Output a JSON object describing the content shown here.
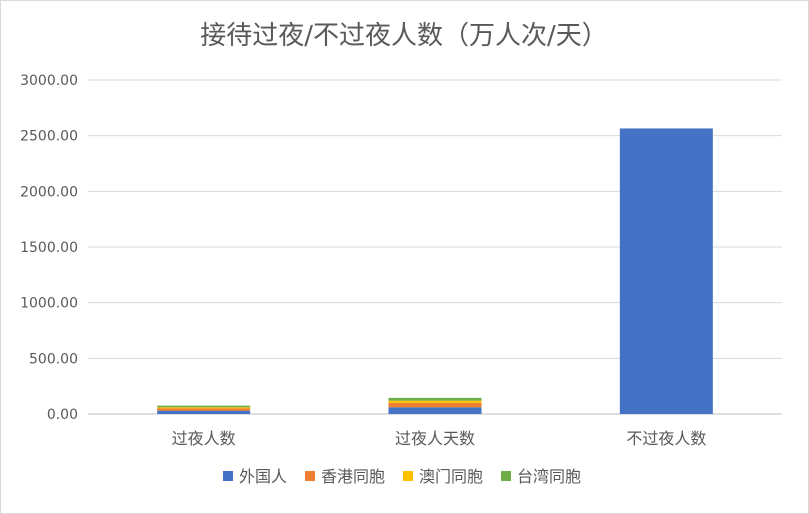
{
  "chart_data": {
    "type": "bar",
    "stacked": true,
    "title": "接待过夜/不过夜人数（万人次/天）",
    "categories": [
      "过夜人数",
      "过夜人天数",
      "不过夜人数"
    ],
    "series": [
      {
        "name": "外国人",
        "color": "#4472C4",
        "values": [
          30,
          60,
          2565
        ]
      },
      {
        "name": "香港同胞",
        "color": "#ED7D31",
        "values": [
          20,
          40,
          0
        ]
      },
      {
        "name": "澳门同胞",
        "color": "#FFC000",
        "values": [
          10,
          20,
          0
        ]
      },
      {
        "name": "台湾同胞",
        "color": "#70AD47",
        "values": [
          15,
          25,
          0
        ]
      }
    ],
    "yticks": [
      "0.00",
      "500.00",
      "1000.00",
      "1500.00",
      "2000.00",
      "2500.00",
      "3000.00"
    ],
    "ylim": [
      0,
      3000
    ],
    "grid": true,
    "legend_position": "bottom"
  }
}
